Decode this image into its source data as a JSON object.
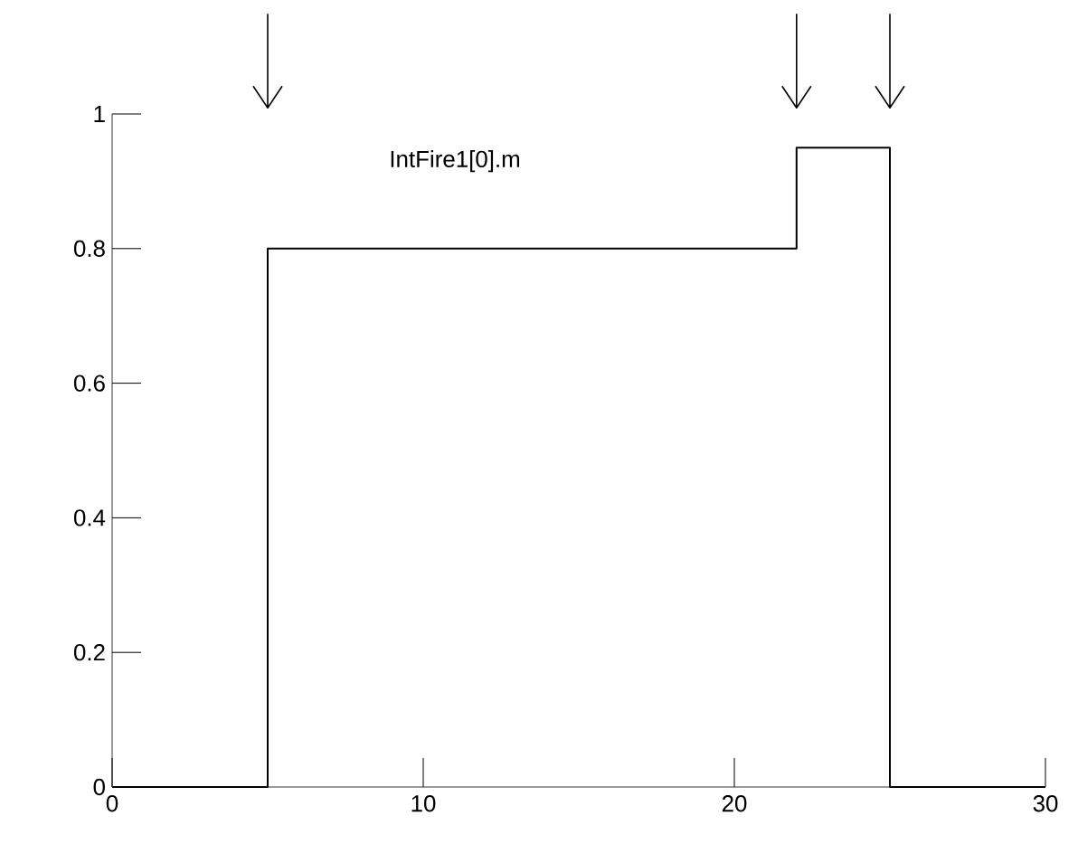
{
  "chart_data": {
    "type": "step",
    "x": [
      0,
      5,
      22,
      25,
      30
    ],
    "series": [
      {
        "name": "IntFire1[0].m",
        "color": "#000000",
        "values": [
          0,
          0.8,
          0.95,
          0,
          0
        ]
      }
    ],
    "xlim": [
      0,
      30
    ],
    "xticks": [
      0,
      10,
      20,
      30
    ],
    "ylim": [
      0,
      1
    ],
    "yticks": [
      0,
      0.2,
      0.4,
      0.6,
      0.8,
      1
    ],
    "grid": false
  }
}
